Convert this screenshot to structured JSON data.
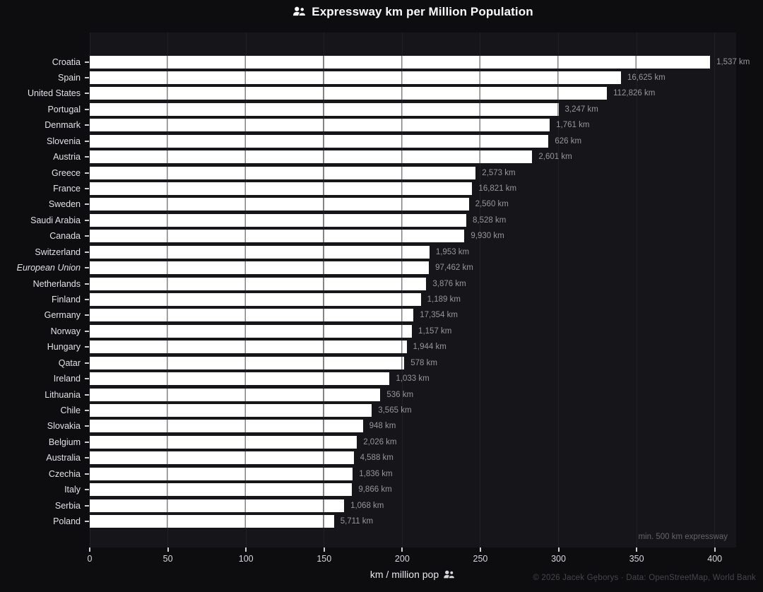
{
  "title": "Expressway km per Million Population",
  "xlabel": "km / million pop",
  "note": "min. 500 km expressway",
  "footer": "© 2026 Jacek Gęborys  ·  Data: OpenStreetMap, World Bank",
  "icons": {
    "title_icon": "people-icon",
    "xlabel_icon": "people-icon"
  },
  "colors": {
    "page_bg": "#0d0d10",
    "plot_bg": "#15151a",
    "bar": "#ffffff",
    "bar_separator": "#83838a",
    "gridline": "#202028",
    "category_label": "#e2e2e6",
    "value_label": "#96969b",
    "tick_label": "#d8d8dc",
    "title_text": "#fafafa",
    "note_text": "#64646a",
    "footer_text": "#46464c"
  },
  "chart_data": {
    "type": "bar",
    "orientation": "horizontal",
    "title": "Expressway km per Million Population",
    "xlabel": "km / million pop",
    "xlim": [
      0,
      413.7
    ],
    "xticks": [
      0,
      50,
      100,
      150,
      200,
      250,
      300,
      350,
      400
    ],
    "grid": true,
    "legend": false,
    "note": "min. 500 km expressway",
    "series_name": "Expressway km per million population",
    "value_unit": "km per million pop (bar length); label shows total expressway km",
    "rows": [
      {
        "category": "Croatia",
        "km_per_million": 397.0,
        "total_label": "1,537 km"
      },
      {
        "category": "Spain",
        "km_per_million": 340.0,
        "total_label": "16,625 km"
      },
      {
        "category": "United States",
        "km_per_million": 331.0,
        "total_label": "112,826 km"
      },
      {
        "category": "Portugal",
        "km_per_million": 300.0,
        "total_label": "3,247 km"
      },
      {
        "category": "Denmark",
        "km_per_million": 294.4,
        "total_label": "1,761 km"
      },
      {
        "category": "Slovenia",
        "km_per_million": 293.6,
        "total_label": "626 km"
      },
      {
        "category": "Austria",
        "km_per_million": 283.2,
        "total_label": "2,601 km"
      },
      {
        "category": "Greece",
        "km_per_million": 247.0,
        "total_label": "2,573 km"
      },
      {
        "category": "France",
        "km_per_million": 244.8,
        "total_label": "16,821 km"
      },
      {
        "category": "Sweden",
        "km_per_million": 242.6,
        "total_label": "2,560 km"
      },
      {
        "category": "Saudi Arabia",
        "km_per_million": 241.0,
        "total_label": "8,528 km"
      },
      {
        "category": "Canada",
        "km_per_million": 239.8,
        "total_label": "9,930 km"
      },
      {
        "category": "Switzerland",
        "km_per_million": 217.4,
        "total_label": "1,953 km"
      },
      {
        "category": "European Union",
        "km_per_million": 217.1,
        "total_label": "97,462 km"
      },
      {
        "category": "Netherlands",
        "km_per_million": 215.4,
        "total_label": "3,876 km"
      },
      {
        "category": "Finland",
        "km_per_million": 211.9,
        "total_label": "1,189 km"
      },
      {
        "category": "Germany",
        "km_per_million": 207.2,
        "total_label": "17,354 km"
      },
      {
        "category": "Norway",
        "km_per_million": 206.2,
        "total_label": "1,157 km"
      },
      {
        "category": "Hungary",
        "km_per_million": 202.8,
        "total_label": "1,944 km"
      },
      {
        "category": "Qatar",
        "km_per_million": 201.3,
        "total_label": "578 km"
      },
      {
        "category": "Ireland",
        "km_per_million": 191.9,
        "total_label": "1,033 km"
      },
      {
        "category": "Lithuania",
        "km_per_million": 186.0,
        "total_label": "536 km"
      },
      {
        "category": "Chile",
        "km_per_million": 180.5,
        "total_label": "3,565 km"
      },
      {
        "category": "Slovakia",
        "km_per_million": 174.8,
        "total_label": "948 km"
      },
      {
        "category": "Belgium",
        "km_per_million": 171.0,
        "total_label": "2,026 km"
      },
      {
        "category": "Australia",
        "km_per_million": 168.9,
        "total_label": "4,588 km"
      },
      {
        "category": "Czechia",
        "km_per_million": 168.3,
        "total_label": "1,836 km"
      },
      {
        "category": "Italy",
        "km_per_million": 167.9,
        "total_label": "9,866 km"
      },
      {
        "category": "Serbia",
        "km_per_million": 162.8,
        "total_label": "1,068 km"
      },
      {
        "category": "Poland",
        "km_per_million": 156.3,
        "total_label": "5,711 km"
      }
    ],
    "italic_categories": [
      "European Union"
    ]
  }
}
